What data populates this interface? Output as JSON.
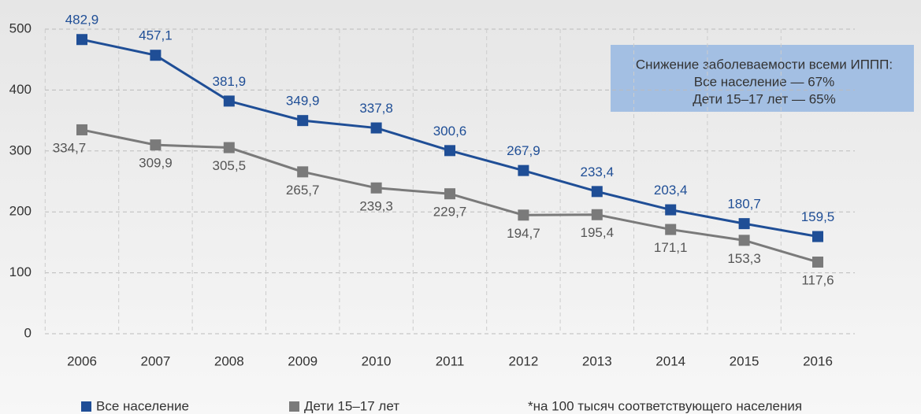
{
  "chart_data": {
    "type": "line",
    "categories": [
      "2006",
      "2007",
      "2008",
      "2009",
      "2010",
      "2011",
      "2012",
      "2013",
      "2014",
      "2015",
      "2016"
    ],
    "series": [
      {
        "name": "Все население",
        "color": "#1f4e96",
        "label_color": "#1f4e96",
        "values": [
          482.9,
          457.1,
          381.9,
          349.9,
          337.8,
          300.6,
          267.9,
          233.4,
          203.4,
          180.7,
          159.5
        ],
        "value_labels": [
          "482,9",
          "457,1",
          "381,9",
          "349,9",
          "337,8",
          "300,6",
          "267,9",
          "233,4",
          "203,4",
          "180,7",
          "159,5"
        ]
      },
      {
        "name": "Дети 15–17 лет",
        "color": "#7a7a7a",
        "label_color": "#555555",
        "values": [
          334.7,
          309.9,
          305.5,
          265.7,
          239.3,
          229.7,
          194.7,
          195.4,
          171.1,
          153.3,
          117.6
        ],
        "value_labels": [
          "334,7",
          "309,9",
          "305,5",
          "265,7",
          "239,3",
          "229,7",
          "194,7",
          "195,4",
          "171,1",
          "153,3",
          "117,6"
        ]
      }
    ],
    "ylim": [
      0,
      500
    ],
    "yticks": [
      0,
      100,
      200,
      300,
      400,
      500
    ],
    "grid": true,
    "annotation": [
      "Снижение заболеваемости всеми ИППП:",
      "Все население — 67%",
      "Дети 15–17 лет — 65%"
    ],
    "footnote": "*на 100 тысяч соответствующего населения"
  }
}
